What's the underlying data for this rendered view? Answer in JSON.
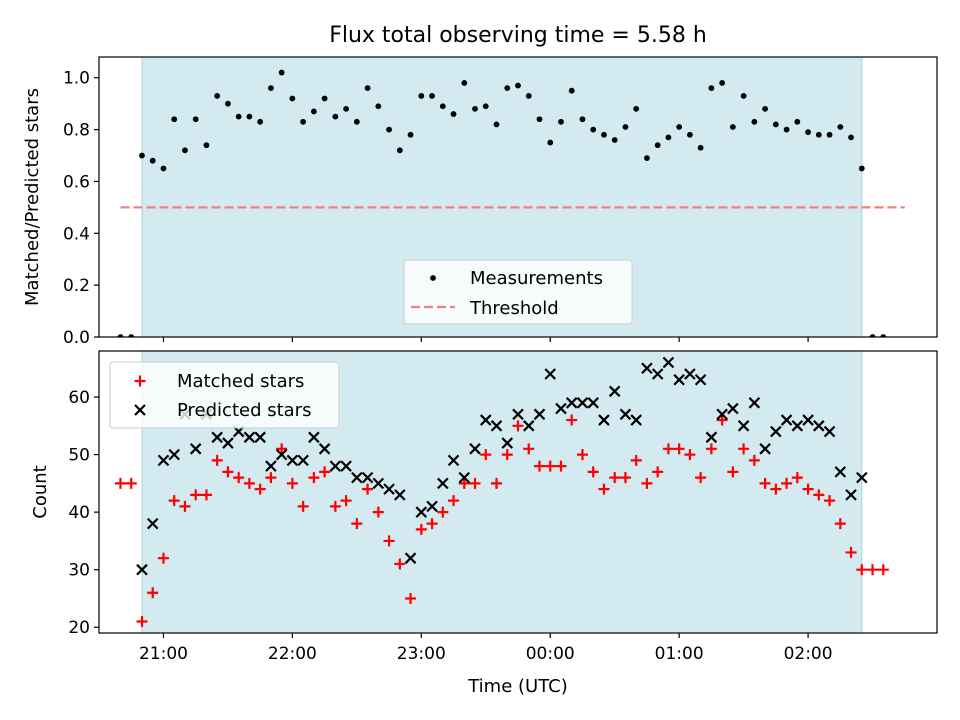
{
  "chart_data": [
    {
      "type": "scatter",
      "title": "Flux total observing time = 5.58 h",
      "xlabel": "",
      "ylabel": "Matched/Predicted stars",
      "x_unit": "UTC time",
      "xlim": [
        "20:30",
        "03:00"
      ],
      "ylim": [
        0.0,
        1.08
      ],
      "y_ticks": [
        "0.0",
        "0.2",
        "0.4",
        "0.6",
        "0.8",
        "1.0"
      ],
      "x_ticks": [
        "21:00",
        "22:00",
        "23:00",
        "00:00",
        "01:00",
        "02:00"
      ],
      "shaded_interval": [
        "20:50",
        "02:25"
      ],
      "shade_color": "#d3eaf0",
      "legend_position": "lower-center",
      "legend": [
        "Measurements",
        "Threshold"
      ],
      "threshold": {
        "name": "Threshold",
        "value": 0.5,
        "x_range": [
          "20:40",
          "02:45"
        ],
        "color": "#f08080",
        "style": "dashed"
      },
      "series": [
        {
          "name": "Measurements",
          "color": "#000000",
          "marker": "dot",
          "points": [
            [
              "20:40",
              0.0
            ],
            [
              "20:45",
              0.0
            ],
            [
              "20:50",
              0.7
            ],
            [
              "20:55",
              0.68
            ],
            [
              "21:00",
              0.65
            ],
            [
              "21:05",
              0.84
            ],
            [
              "21:10",
              0.72
            ],
            [
              "21:15",
              0.84
            ],
            [
              "21:20",
              0.74
            ],
            [
              "21:25",
              0.93
            ],
            [
              "21:30",
              0.9
            ],
            [
              "21:35",
              0.85
            ],
            [
              "21:40",
              0.85
            ],
            [
              "21:45",
              0.83
            ],
            [
              "21:50",
              0.96
            ],
            [
              "21:55",
              1.02
            ],
            [
              "22:00",
              0.92
            ],
            [
              "22:05",
              0.83
            ],
            [
              "22:10",
              0.87
            ],
            [
              "22:15",
              0.92
            ],
            [
              "22:20",
              0.85
            ],
            [
              "22:25",
              0.88
            ],
            [
              "22:30",
              0.83
            ],
            [
              "22:35",
              0.96
            ],
            [
              "22:40",
              0.89
            ],
            [
              "22:45",
              0.8
            ],
            [
              "22:50",
              0.72
            ],
            [
              "22:55",
              0.78
            ],
            [
              "23:00",
              0.93
            ],
            [
              "23:05",
              0.93
            ],
            [
              "23:10",
              0.89
            ],
            [
              "23:15",
              0.86
            ],
            [
              "23:20",
              0.98
            ],
            [
              "23:25",
              0.88
            ],
            [
              "23:30",
              0.89
            ],
            [
              "23:35",
              0.82
            ],
            [
              "23:40",
              0.96
            ],
            [
              "23:45",
              0.97
            ],
            [
              "23:50",
              0.93
            ],
            [
              "23:55",
              0.84
            ],
            [
              "00:00",
              0.75
            ],
            [
              "00:05",
              0.83
            ],
            [
              "00:10",
              0.95
            ],
            [
              "00:15",
              0.84
            ],
            [
              "00:20",
              0.8
            ],
            [
              "00:25",
              0.78
            ],
            [
              "00:30",
              0.76
            ],
            [
              "00:35",
              0.81
            ],
            [
              "00:40",
              0.88
            ],
            [
              "00:45",
              0.69
            ],
            [
              "00:50",
              0.74
            ],
            [
              "00:55",
              0.77
            ],
            [
              "01:00",
              0.81
            ],
            [
              "01:05",
              0.78
            ],
            [
              "01:10",
              0.73
            ],
            [
              "01:15",
              0.96
            ],
            [
              "01:20",
              0.98
            ],
            [
              "01:25",
              0.81
            ],
            [
              "01:30",
              0.93
            ],
            [
              "01:35",
              0.83
            ],
            [
              "01:40",
              0.88
            ],
            [
              "01:45",
              0.82
            ],
            [
              "01:50",
              0.8
            ],
            [
              "01:55",
              0.83
            ],
            [
              "02:00",
              0.79
            ],
            [
              "02:05",
              0.78
            ],
            [
              "02:10",
              0.78
            ],
            [
              "02:15",
              0.81
            ],
            [
              "02:20",
              0.77
            ],
            [
              "02:25",
              0.65
            ],
            [
              "02:30",
              0.0
            ],
            [
              "02:35",
              0.0
            ]
          ]
        }
      ]
    },
    {
      "type": "scatter",
      "title": "",
      "xlabel": "Time (UTC)",
      "ylabel": "Count",
      "xlim": [
        "20:30",
        "03:00"
      ],
      "ylim": [
        19,
        68
      ],
      "y_ticks": [
        "20",
        "30",
        "40",
        "50",
        "60"
      ],
      "x_ticks": [
        "21:00",
        "22:00",
        "23:00",
        "00:00",
        "01:00",
        "02:00"
      ],
      "shaded_interval": [
        "20:50",
        "02:25"
      ],
      "shade_color": "#d3eaf0",
      "legend_position": "upper-left",
      "legend": [
        "Matched stars",
        "Predicted stars"
      ],
      "series": [
        {
          "name": "Matched stars",
          "color": "#ff0000",
          "marker": "plus",
          "points": [
            [
              "20:40",
              45
            ],
            [
              "20:45",
              45
            ],
            [
              "20:50",
              21
            ],
            [
              "20:55",
              26
            ],
            [
              "21:00",
              32
            ],
            [
              "21:05",
              42
            ],
            [
              "21:10",
              41
            ],
            [
              "21:15",
              43
            ],
            [
              "21:20",
              43
            ],
            [
              "21:25",
              49
            ],
            [
              "21:30",
              47
            ],
            [
              "21:35",
              46
            ],
            [
              "21:40",
              45
            ],
            [
              "21:45",
              44
            ],
            [
              "21:50",
              46
            ],
            [
              "21:55",
              51
            ],
            [
              "22:00",
              45
            ],
            [
              "22:05",
              41
            ],
            [
              "22:10",
              46
            ],
            [
              "22:15",
              47
            ],
            [
              "22:20",
              41
            ],
            [
              "22:25",
              42
            ],
            [
              "22:30",
              38
            ],
            [
              "22:35",
              44
            ],
            [
              "22:40",
              40
            ],
            [
              "22:45",
              35
            ],
            [
              "22:50",
              31
            ],
            [
              "22:55",
              25
            ],
            [
              "23:00",
              37
            ],
            [
              "23:05",
              38
            ],
            [
              "23:10",
              40
            ],
            [
              "23:15",
              42
            ],
            [
              "23:20",
              45
            ],
            [
              "23:25",
              45
            ],
            [
              "23:30",
              50
            ],
            [
              "23:35",
              45
            ],
            [
              "23:40",
              50
            ],
            [
              "23:45",
              55
            ],
            [
              "23:50",
              51
            ],
            [
              "23:55",
              48
            ],
            [
              "00:00",
              48
            ],
            [
              "00:05",
              48
            ],
            [
              "00:10",
              56
            ],
            [
              "00:15",
              50
            ],
            [
              "00:20",
              47
            ],
            [
              "00:25",
              44
            ],
            [
              "00:30",
              46
            ],
            [
              "00:35",
              46
            ],
            [
              "00:40",
              49
            ],
            [
              "00:45",
              45
            ],
            [
              "00:50",
              47
            ],
            [
              "00:55",
              51
            ],
            [
              "01:00",
              51
            ],
            [
              "01:05",
              50
            ],
            [
              "01:10",
              46
            ],
            [
              "01:15",
              51
            ],
            [
              "01:20",
              56
            ],
            [
              "01:25",
              47
            ],
            [
              "01:30",
              51
            ],
            [
              "01:35",
              49
            ],
            [
              "01:40",
              45
            ],
            [
              "01:45",
              44
            ],
            [
              "01:50",
              45
            ],
            [
              "01:55",
              46
            ],
            [
              "02:00",
              44
            ],
            [
              "02:05",
              43
            ],
            [
              "02:10",
              42
            ],
            [
              "02:15",
              38
            ],
            [
              "02:20",
              33
            ],
            [
              "02:25",
              30
            ],
            [
              "02:30",
              30
            ],
            [
              "02:35",
              30
            ]
          ]
        },
        {
          "name": "Predicted stars",
          "color": "#000000",
          "marker": "x",
          "points": [
            [
              "20:50",
              30
            ],
            [
              "20:55",
              38
            ],
            [
              "21:00",
              49
            ],
            [
              "21:05",
              50
            ],
            [
              "21:10",
              57
            ],
            [
              "21:15",
              51
            ],
            [
              "21:20",
              57
            ],
            [
              "21:25",
              53
            ],
            [
              "21:30",
              52
            ],
            [
              "21:35",
              54
            ],
            [
              "21:40",
              53
            ],
            [
              "21:45",
              53
            ],
            [
              "21:50",
              48
            ],
            [
              "21:55",
              50
            ],
            [
              "22:00",
              49
            ],
            [
              "22:05",
              49
            ],
            [
              "22:10",
              53
            ],
            [
              "22:15",
              51
            ],
            [
              "22:20",
              48
            ],
            [
              "22:25",
              48
            ],
            [
              "22:30",
              46
            ],
            [
              "22:35",
              46
            ],
            [
              "22:40",
              45
            ],
            [
              "22:45",
              44
            ],
            [
              "22:50",
              43
            ],
            [
              "22:55",
              32
            ],
            [
              "23:00",
              40
            ],
            [
              "23:05",
              41
            ],
            [
              "23:10",
              45
            ],
            [
              "23:15",
              49
            ],
            [
              "23:20",
              46
            ],
            [
              "23:25",
              51
            ],
            [
              "23:30",
              56
            ],
            [
              "23:35",
              55
            ],
            [
              "23:40",
              52
            ],
            [
              "23:45",
              57
            ],
            [
              "23:50",
              55
            ],
            [
              "23:55",
              57
            ],
            [
              "00:00",
              64
            ],
            [
              "00:05",
              58
            ],
            [
              "00:10",
              59
            ],
            [
              "00:15",
              59
            ],
            [
              "00:20",
              59
            ],
            [
              "00:25",
              56
            ],
            [
              "00:30",
              61
            ],
            [
              "00:35",
              57
            ],
            [
              "00:40",
              56
            ],
            [
              "00:45",
              65
            ],
            [
              "00:50",
              64
            ],
            [
              "00:55",
              66
            ],
            [
              "01:00",
              63
            ],
            [
              "01:05",
              64
            ],
            [
              "01:10",
              63
            ],
            [
              "01:15",
              53
            ],
            [
              "01:20",
              57
            ],
            [
              "01:25",
              58
            ],
            [
              "01:30",
              55
            ],
            [
              "01:35",
              59
            ],
            [
              "01:40",
              51
            ],
            [
              "01:45",
              54
            ],
            [
              "01:50",
              56
            ],
            [
              "01:55",
              55
            ],
            [
              "02:00",
              56
            ],
            [
              "02:05",
              55
            ],
            [
              "02:10",
              54
            ],
            [
              "02:15",
              47
            ],
            [
              "02:20",
              43
            ],
            [
              "02:25",
              46
            ]
          ]
        }
      ]
    }
  ]
}
